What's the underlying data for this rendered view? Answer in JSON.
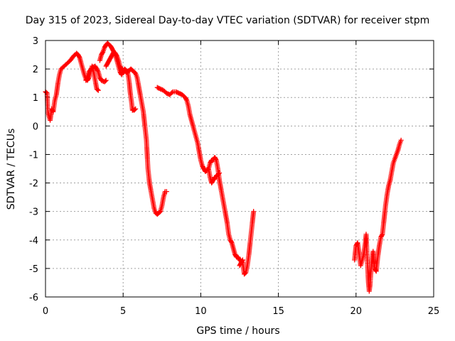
{
  "chart_data": {
    "type": "scatter",
    "title": "Day 315 of 2023, Sidereal Day-to-day VTEC variation (SDTVAR) for receiver stpm",
    "xlabel": "GPS time / hours",
    "ylabel": "SDTVAR / TECUs",
    "xlim": [
      0,
      25
    ],
    "ylim": [
      -6,
      3
    ],
    "xticks": [
      0,
      5,
      10,
      15,
      20,
      25
    ],
    "yticks": [
      -6,
      -5,
      -4,
      -3,
      -2,
      -1,
      0,
      1,
      2,
      3
    ],
    "grid": true,
    "marker": "+",
    "marker_color": "#ff0000",
    "series": [
      {
        "name": "SDTVAR",
        "segments": [
          [
            [
              0.0,
              1.2
            ],
            [
              0.1,
              1.15
            ],
            [
              0.15,
              0.5
            ],
            [
              0.2,
              0.4
            ],
            [
              0.3,
              0.2
            ],
            [
              0.4,
              0.6
            ],
            [
              0.5,
              0.5
            ],
            [
              0.6,
              0.9
            ],
            [
              0.7,
              1.1
            ],
            [
              0.8,
              1.5
            ],
            [
              0.9,
              1.8
            ],
            [
              1.0,
              2.0
            ],
            [
              1.2,
              2.1
            ],
            [
              1.4,
              2.2
            ],
            [
              1.6,
              2.3
            ],
            [
              1.8,
              2.45
            ],
            [
              2.0,
              2.55
            ],
            [
              2.1,
              2.5
            ],
            [
              2.2,
              2.4
            ],
            [
              2.3,
              2.2
            ],
            [
              2.4,
              2.0
            ],
            [
              2.5,
              1.8
            ],
            [
              2.6,
              1.65
            ],
            [
              2.7,
              1.6
            ],
            [
              2.8,
              1.7
            ],
            [
              2.9,
              1.9
            ],
            [
              3.0,
              2.1
            ],
            [
              3.1,
              1.9
            ],
            [
              3.2,
              1.6
            ],
            [
              3.3,
              1.3
            ],
            [
              3.4,
              1.25
            ]
          ],
          [
            [
              2.6,
              1.6
            ],
            [
              2.8,
              1.9
            ],
            [
              3.0,
              2.05
            ],
            [
              3.2,
              2.1
            ],
            [
              3.4,
              1.9
            ],
            [
              3.5,
              1.7
            ],
            [
              3.6,
              1.6
            ],
            [
              3.8,
              1.55
            ],
            [
              3.9,
              1.6
            ]
          ],
          [
            [
              3.5,
              2.3
            ],
            [
              3.6,
              2.5
            ],
            [
              3.7,
              2.6
            ],
            [
              3.8,
              2.75
            ],
            [
              3.9,
              2.85
            ],
            [
              4.0,
              2.9
            ],
            [
              4.1,
              2.85
            ],
            [
              4.2,
              2.8
            ],
            [
              4.3,
              2.7
            ],
            [
              4.4,
              2.6
            ],
            [
              4.5,
              2.5
            ],
            [
              4.6,
              2.3
            ],
            [
              4.7,
              2.1
            ],
            [
              4.8,
              1.9
            ],
            [
              4.9,
              1.8
            ],
            [
              5.0,
              1.9
            ],
            [
              5.1,
              2.0
            ],
            [
              5.2,
              1.95
            ],
            [
              5.3,
              1.85
            ],
            [
              5.35,
              1.7
            ],
            [
              5.4,
              1.5
            ],
            [
              5.45,
              1.2
            ],
            [
              5.5,
              1.0
            ],
            [
              5.55,
              0.8
            ],
            [
              5.6,
              0.55
            ]
          ],
          [
            [
              3.9,
              2.1
            ],
            [
              4.0,
              2.2
            ],
            [
              4.1,
              2.3
            ],
            [
              4.2,
              2.4
            ],
            [
              4.3,
              2.5
            ],
            [
              4.4,
              2.6
            ],
            [
              4.5,
              2.55
            ],
            [
              4.6,
              2.45
            ],
            [
              4.7,
              2.3
            ],
            [
              4.8,
              2.1
            ],
            [
              4.9,
              2.0
            ],
            [
              5.0,
              1.95
            ],
            [
              5.2,
              1.9
            ],
            [
              5.4,
              1.95
            ],
            [
              5.5,
              2.0
            ],
            [
              5.6,
              1.95
            ],
            [
              5.7,
              1.9
            ],
            [
              5.8,
              1.85
            ],
            [
              5.9,
              1.7
            ],
            [
              6.0,
              1.4
            ],
            [
              6.1,
              1.1
            ],
            [
              6.2,
              0.8
            ],
            [
              6.3,
              0.5
            ],
            [
              6.4,
              0.0
            ],
            [
              6.5,
              -0.5
            ],
            [
              6.55,
              -1.0
            ],
            [
              6.6,
              -1.5
            ],
            [
              6.7,
              -2.0
            ],
            [
              6.8,
              -2.3
            ],
            [
              6.9,
              -2.6
            ],
            [
              7.0,
              -2.9
            ],
            [
              7.1,
              -3.05
            ],
            [
              7.2,
              -3.1
            ],
            [
              7.3,
              -3.05
            ],
            [
              7.4,
              -3.0
            ],
            [
              7.5,
              -2.8
            ],
            [
              7.6,
              -2.5
            ],
            [
              7.7,
              -2.3
            ],
            [
              7.8,
              -2.3
            ]
          ],
          [
            [
              5.6,
              0.6
            ],
            [
              5.7,
              0.55
            ],
            [
              5.8,
              0.6
            ]
          ],
          [
            [
              7.2,
              1.35
            ],
            [
              7.4,
              1.3
            ],
            [
              7.6,
              1.25
            ],
            [
              7.8,
              1.15
            ],
            [
              8.0,
              1.1
            ],
            [
              8.2,
              1.2
            ],
            [
              8.4,
              1.2
            ],
            [
              8.6,
              1.15
            ],
            [
              8.8,
              1.1
            ],
            [
              9.0,
              1.0
            ],
            [
              9.1,
              0.9
            ],
            [
              9.2,
              0.7
            ],
            [
              9.3,
              0.4
            ],
            [
              9.4,
              0.2
            ],
            [
              9.5,
              0.0
            ],
            [
              9.6,
              -0.2
            ],
            [
              9.7,
              -0.4
            ],
            [
              9.8,
              -0.6
            ],
            [
              9.9,
              -0.9
            ],
            [
              10.0,
              -1.2
            ],
            [
              10.1,
              -1.4
            ],
            [
              10.2,
              -1.5
            ],
            [
              10.3,
              -1.6
            ],
            [
              10.4,
              -1.55
            ],
            [
              10.5,
              -1.5
            ],
            [
              10.6,
              -1.8
            ],
            [
              10.7,
              -2.0
            ],
            [
              10.8,
              -1.9
            ],
            [
              10.9,
              -1.8
            ],
            [
              11.0,
              -1.8
            ],
            [
              11.1,
              -1.7
            ],
            [
              11.2,
              -1.65
            ]
          ],
          [
            [
              10.5,
              -1.5
            ],
            [
              10.6,
              -1.3
            ],
            [
              10.7,
              -1.2
            ],
            [
              10.8,
              -1.2
            ],
            [
              10.9,
              -1.1
            ],
            [
              11.0,
              -1.2
            ],
            [
              11.1,
              -1.5
            ],
            [
              11.2,
              -1.9
            ],
            [
              11.3,
              -2.2
            ],
            [
              11.4,
              -2.5
            ],
            [
              11.5,
              -2.8
            ],
            [
              11.6,
              -3.1
            ],
            [
              11.7,
              -3.4
            ],
            [
              11.8,
              -3.8
            ],
            [
              11.9,
              -4.0
            ],
            [
              12.0,
              -4.1
            ],
            [
              12.1,
              -4.3
            ],
            [
              12.2,
              -4.5
            ],
            [
              12.3,
              -4.6
            ],
            [
              12.4,
              -4.6
            ],
            [
              12.5,
              -4.7
            ],
            [
              12.6,
              -4.75
            ],
            [
              12.7,
              -4.8
            ],
            [
              12.8,
              -5.2
            ],
            [
              12.9,
              -5.15
            ],
            [
              13.0,
              -4.9
            ],
            [
              13.1,
              -4.5
            ],
            [
              13.2,
              -4.0
            ],
            [
              13.3,
              -3.5
            ],
            [
              13.4,
              -3.0
            ]
          ],
          [
            [
              12.5,
              -4.9
            ],
            [
              12.6,
              -4.8
            ],
            [
              12.7,
              -4.7
            ]
          ],
          [
            [
              19.9,
              -4.7
            ],
            [
              20.0,
              -4.2
            ],
            [
              20.1,
              -4.1
            ],
            [
              20.2,
              -4.5
            ],
            [
              20.3,
              -4.9
            ],
            [
              20.4,
              -4.7
            ],
            [
              20.5,
              -4.5
            ],
            [
              20.6,
              -4.1
            ],
            [
              20.65,
              -3.8
            ],
            [
              20.7,
              -4.4
            ],
            [
              20.75,
              -5.0
            ],
            [
              20.8,
              -5.5
            ],
            [
              20.85,
              -5.8
            ],
            [
              20.9,
              -5.6
            ],
            [
              21.0,
              -4.8
            ],
            [
              21.1,
              -4.4
            ],
            [
              21.2,
              -5.0
            ],
            [
              21.3,
              -5.1
            ],
            [
              21.4,
              -4.6
            ],
            [
              21.5,
              -4.2
            ],
            [
              21.6,
              -3.9
            ],
            [
              21.7,
              -3.8
            ],
            [
              21.8,
              -3.3
            ],
            [
              21.9,
              -2.8
            ],
            [
              22.0,
              -2.4
            ],
            [
              22.1,
              -2.1
            ],
            [
              22.2,
              -1.9
            ],
            [
              22.3,
              -1.6
            ],
            [
              22.4,
              -1.3
            ],
            [
              22.5,
              -1.15
            ],
            [
              22.6,
              -1.0
            ],
            [
              22.7,
              -0.85
            ],
            [
              22.8,
              -0.65
            ],
            [
              22.9,
              -0.5
            ]
          ]
        ]
      }
    ]
  }
}
